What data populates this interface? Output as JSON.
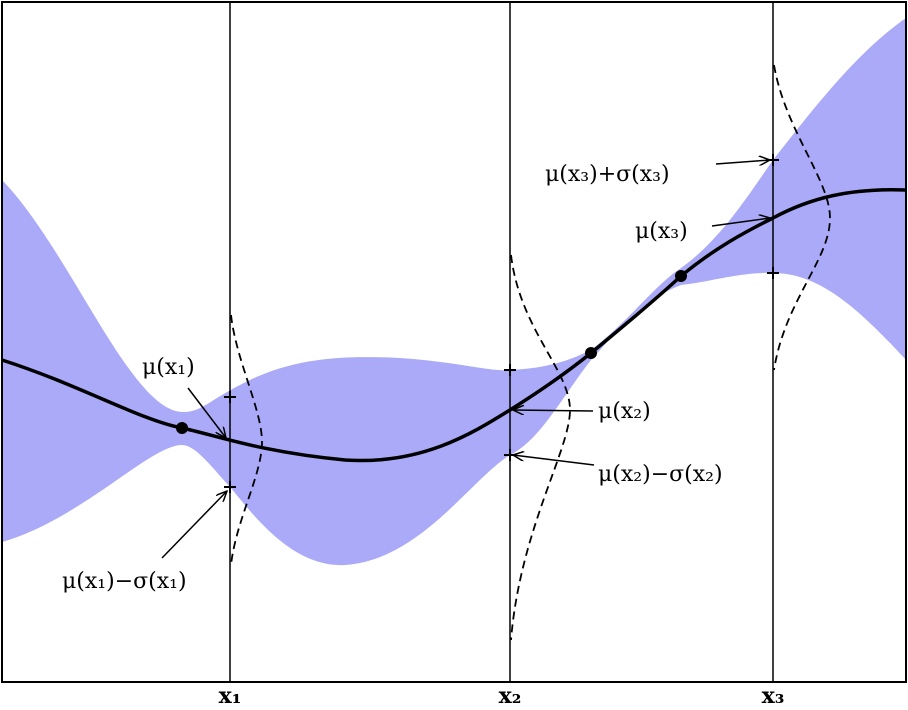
{
  "labels": {
    "mu_x1": "μ(x₁)",
    "mu_minus_sigma_x1": "μ(x₁)−σ(x₁)",
    "mu_x2": "μ(x₂)",
    "mu_minus_sigma_x2": "μ(x₂)−σ(x₂)",
    "mu_plus_sigma_x3": "μ(x₃)+σ(x₃)",
    "mu_x3": "μ(x₃)"
  },
  "axis": {
    "ticks": [
      "x₁",
      "x₂",
      "x₃"
    ]
  }
}
